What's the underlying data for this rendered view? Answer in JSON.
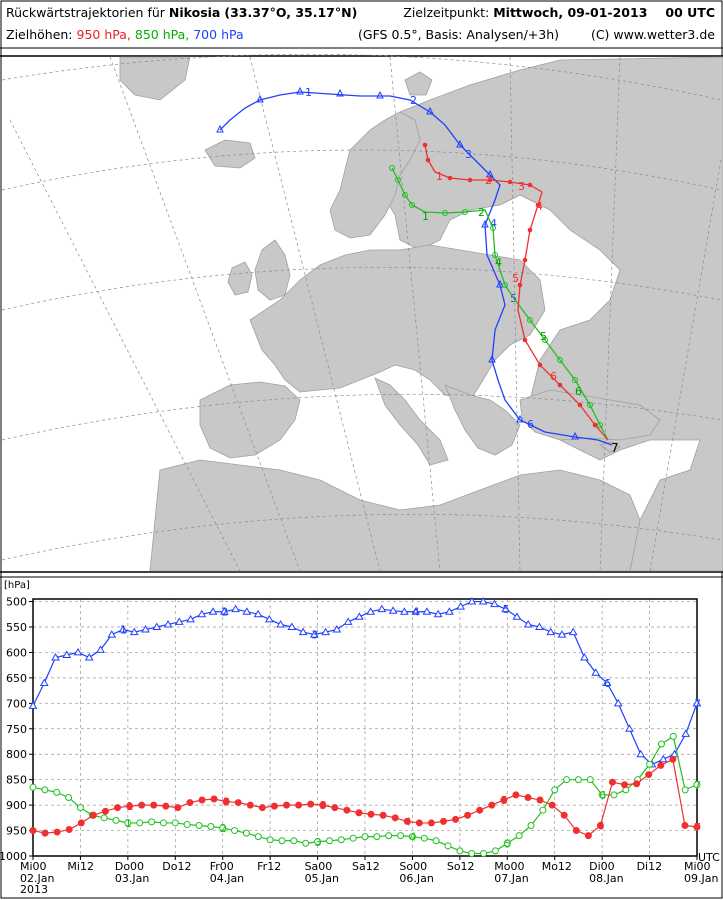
{
  "header": {
    "title_prefix": "Rückwärtstrajektorien für",
    "city": "Nikosia",
    "coords": "(33.37°O, 35.17°N)",
    "target_label": "Zielzeitpunkt:",
    "target_time": "Mittwoch, 09-01-2013",
    "target_utc": "00 UTC",
    "levels_label": "Zielhöhen:",
    "level_950": "950 hPa,",
    "level_850": "850 hPa,",
    "level_700": "700 hPa",
    "model": "(GFS 0.5°, Basis: Analysen/+3h)",
    "copyright": "(C) www.wetter3.de"
  },
  "colors": {
    "series_950": "#f03030",
    "series_850": "#20c020",
    "series_700": "#2040ff",
    "land": "#c8c8c8",
    "sea": "#ffffff",
    "coast": "#9a9a9a",
    "grid": "#888888"
  },
  "chart_data": {
    "type": "line",
    "ylabel": "[hPa]",
    "xunit": "UTC",
    "ylim": [
      1000,
      495
    ],
    "yticks": [
      500,
      550,
      600,
      650,
      700,
      750,
      800,
      850,
      900,
      950,
      1000
    ],
    "xticks": [
      {
        "t": 0,
        "top": "Mi00",
        "bottom": "02.Jan"
      },
      {
        "t": 12,
        "top": "Mi12",
        "bottom": ""
      },
      {
        "t": 24,
        "top": "Do00",
        "bottom": "03.Jan"
      },
      {
        "t": 36,
        "top": "Do12",
        "bottom": ""
      },
      {
        "t": 48,
        "top": "Fr00",
        "bottom": "04.Jan"
      },
      {
        "t": 60,
        "top": "Fr12",
        "bottom": ""
      },
      {
        "t": 72,
        "top": "Sa00",
        "bottom": "05.Jan"
      },
      {
        "t": 84,
        "top": "Sa12",
        "bottom": ""
      },
      {
        "t": 96,
        "top": "So00",
        "bottom": "06.Jan"
      },
      {
        "t": 108,
        "top": "So12",
        "bottom": ""
      },
      {
        "t": 120,
        "top": "Mo00",
        "bottom": "07.Jan"
      },
      {
        "t": 132,
        "top": "Mo12",
        "bottom": ""
      },
      {
        "t": 144,
        "top": "Di00",
        "bottom": "08.Jan"
      },
      {
        "t": 156,
        "top": "Di12",
        "bottom": ""
      },
      {
        "t": 168,
        "top": "Mi00",
        "bottom": "09.Jan"
      }
    ],
    "year": "2013",
    "day_markers": [
      {
        "t": 24,
        "label": "1"
      },
      {
        "t": 48,
        "label": "2"
      },
      {
        "t": 72,
        "label": "3"
      },
      {
        "t": 96,
        "label": "4"
      },
      {
        "t": 120,
        "label": "5"
      },
      {
        "t": 144,
        "label": "6"
      },
      {
        "t": 168,
        "label": "7"
      }
    ],
    "series": [
      {
        "key": "700",
        "marker": "triangle",
        "values": [
          705,
          660,
          610,
          605,
          600,
          610,
          595,
          565,
          555,
          560,
          555,
          550,
          545,
          540,
          535,
          525,
          520,
          520,
          515,
          520,
          525,
          535,
          545,
          550,
          560,
          565,
          560,
          555,
          540,
          530,
          520,
          515,
          518,
          520,
          520,
          520,
          525,
          520,
          510,
          500,
          500,
          505,
          515,
          530,
          545,
          550,
          560,
          565,
          560,
          610,
          640,
          660,
          700,
          750,
          800,
          820,
          810,
          800,
          760,
          700
        ]
      },
      {
        "key": "850",
        "marker": "circle",
        "values": [
          865,
          870,
          875,
          885,
          905,
          920,
          925,
          930,
          935,
          935,
          933,
          935,
          935,
          938,
          940,
          942,
          945,
          950,
          955,
          962,
          968,
          970,
          970,
          975,
          972,
          970,
          968,
          965,
          962,
          962,
          960,
          960,
          962,
          965,
          970,
          980,
          990,
          995,
          995,
          990,
          975,
          960,
          940,
          910,
          870,
          850,
          850,
          850,
          880,
          880,
          870,
          850,
          820,
          780,
          765,
          870,
          860
        ]
      },
      {
        "key": "950",
        "marker": "dot",
        "values": [
          950,
          955,
          953,
          948,
          935,
          920,
          912,
          905,
          902,
          900,
          900,
          902,
          905,
          895,
          890,
          888,
          893,
          895,
          900,
          905,
          902,
          900,
          900,
          898,
          900,
          905,
          910,
          915,
          918,
          920,
          925,
          932,
          935,
          935,
          932,
          928,
          920,
          910,
          900,
          890,
          880,
          885,
          890,
          900,
          920,
          950,
          960,
          940,
          855,
          860,
          858,
          840,
          822,
          810,
          940,
          943
        ]
      }
    ]
  }
}
